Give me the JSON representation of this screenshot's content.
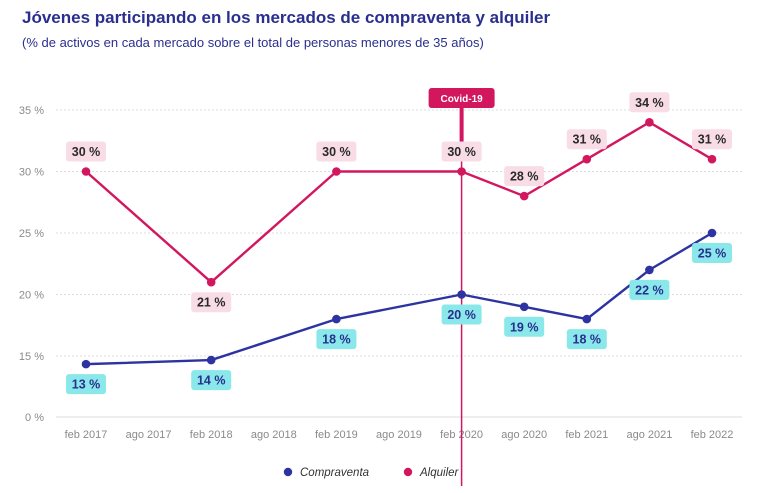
{
  "chart_data": {
    "type": "line",
    "title": "Jóvenes participando en los mercados de compraventa y alquiler",
    "subtitle": "(% de activos en cada mercado sobre el total de personas menores de 35 años)",
    "x": [
      "feb 2017",
      "ago 2017",
      "feb 2018",
      "ago 2018",
      "feb 2019",
      "ago 2019",
      "feb 2020",
      "ago 2020",
      "feb 2021",
      "ago 2021",
      "feb 2022"
    ],
    "yticks": [
      "0 %",
      "15 %",
      "20 %",
      "25 %",
      "30 %",
      "35 %"
    ],
    "ylim": [
      0,
      35
    ],
    "series": [
      {
        "name": "Compraventa",
        "color": "#2d33a0",
        "label_bg": "#8ae8ea",
        "points": [
          {
            "x": 0,
            "y": 13,
            "label": "13 %"
          },
          {
            "x": 2,
            "y": 14,
            "label": "14 %"
          },
          {
            "x": 4,
            "y": 18,
            "label": "18 %"
          },
          {
            "x": 6,
            "y": 20,
            "label": "20 %"
          },
          {
            "x": 7,
            "y": 19,
            "label": "19 %"
          },
          {
            "x": 8,
            "y": 18,
            "label": "18 %"
          },
          {
            "x": 9,
            "y": 22,
            "label": "22 %"
          },
          {
            "x": 10,
            "y": 25,
            "label": "25 %"
          }
        ]
      },
      {
        "name": "Alquiler",
        "color": "#d3175f",
        "label_bg": "#f8dde6",
        "points": [
          {
            "x": 0,
            "y": 30,
            "label": "30 %"
          },
          {
            "x": 2,
            "y": 21,
            "label": "21 %"
          },
          {
            "x": 4,
            "y": 30,
            "label": "30 %"
          },
          {
            "x": 6,
            "y": 30,
            "label": "30 %"
          },
          {
            "x": 7,
            "y": 28,
            "label": "28 %"
          },
          {
            "x": 8,
            "y": 31,
            "label": "31 %"
          },
          {
            "x": 9,
            "y": 34,
            "label": "34 %"
          },
          {
            "x": 10,
            "y": 31,
            "label": "31 %"
          }
        ]
      }
    ],
    "annotation": {
      "label": "Covid-19",
      "x": 6,
      "color": "#d3175f"
    },
    "legend": [
      "Compraventa",
      "Alquiler"
    ],
    "grid": true
  }
}
